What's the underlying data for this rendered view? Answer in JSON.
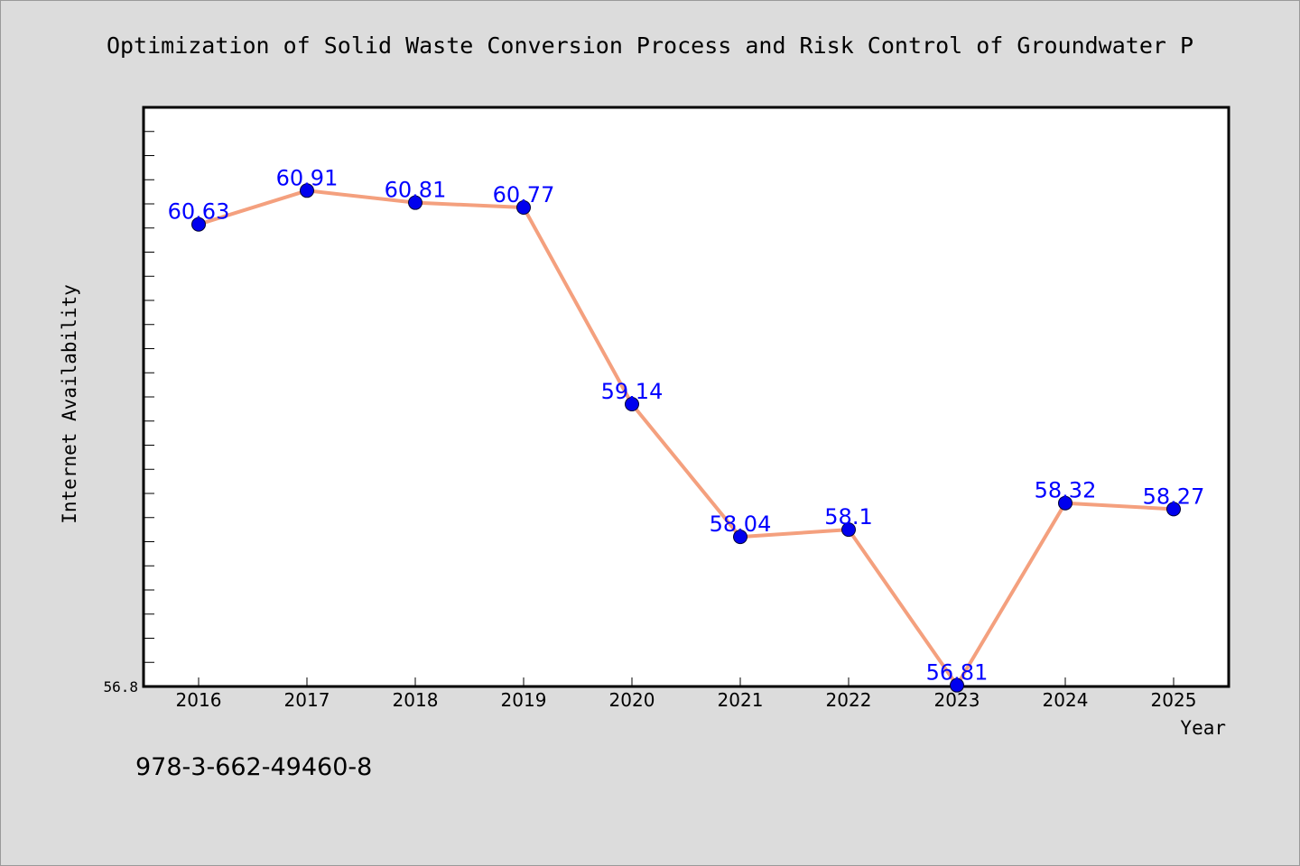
{
  "chart_data": {
    "type": "line",
    "title": "Optimization of Solid Waste Conversion Process and Risk Control of Groundwater P",
    "xlabel": "Year",
    "ylabel": "Internet Availability",
    "categories": [
      "2016",
      "2017",
      "2018",
      "2019",
      "2020",
      "2021",
      "2022",
      "2023",
      "2024",
      "2025"
    ],
    "values": [
      60.63,
      60.91,
      60.81,
      60.77,
      59.14,
      58.04,
      58.1,
      56.81,
      58.32,
      58.27
    ],
    "data_labels": [
      "60.63",
      "60.91",
      "60.81",
      "60.77",
      "59.14",
      "58.04",
      "58.1",
      "56.81",
      "58.32",
      "58.27"
    ],
    "ytick_labels": [
      "56.8"
    ],
    "ylim": [
      56.8,
      61.6
    ],
    "grid": false,
    "legend": "none",
    "colors": {
      "line": "#f4a07e",
      "marker": "#0000ee",
      "data_label": "#0000ff",
      "plot_background": "#ffffff",
      "figure_background": "#dcdcdc"
    }
  },
  "footer": {
    "isbn": "978-3-662-49460-8"
  }
}
